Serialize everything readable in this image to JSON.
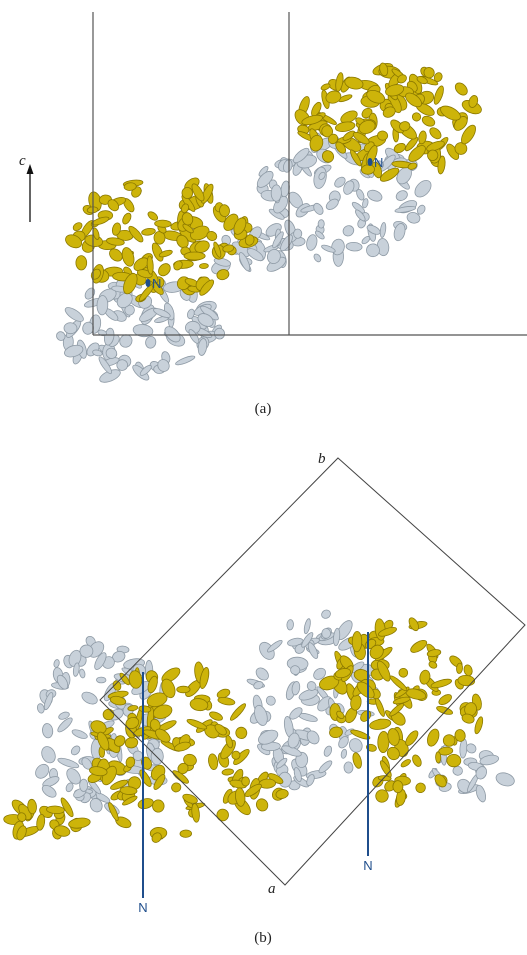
{
  "panel_a": {
    "axis_label": "c",
    "n_label": "N",
    "n_label_2": "N",
    "caption": "(a)"
  },
  "panel_b": {
    "axis_label_top": "b",
    "axis_label_bottom": "a",
    "n_labels": [
      "N",
      "N"
    ],
    "caption": "(b)"
  }
}
